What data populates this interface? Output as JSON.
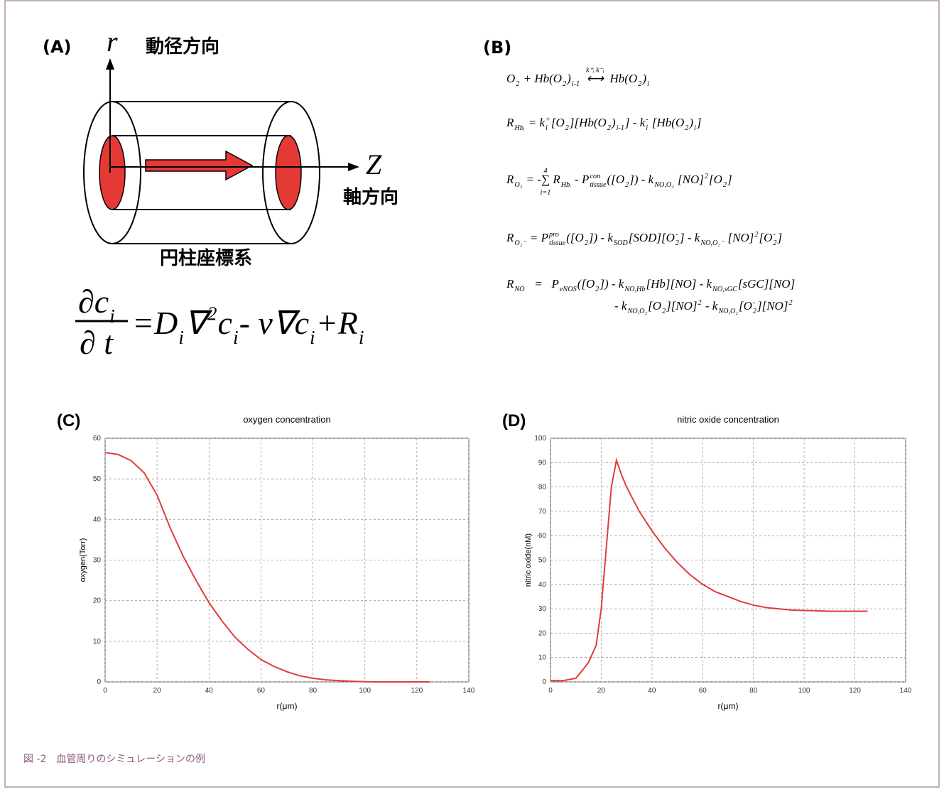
{
  "panel_a": {
    "label": "(A)",
    "r_axis": "r",
    "r_axis_name": "動径方向",
    "z_axis": "Z",
    "z_axis_name": "軸方向",
    "diagram_title": "円柱座標系",
    "equation": {
      "num": [
        {
          "t": "∂c",
          "sub": "i"
        }
      ],
      "den": [
        {
          "t": "∂ t"
        }
      ],
      "rhs": [
        {
          "t": "=D",
          "sub": "i"
        },
        {
          "t": "∇",
          "sup": "2"
        },
        {
          "t": "c",
          "sub": "i"
        },
        {
          "t": "- v∇c",
          "sub": "i"
        },
        {
          "t": "+R",
          "sub": "i"
        }
      ]
    }
  },
  "panel_b": {
    "label": "(B)",
    "equations": [
      [
        {
          "t": "O",
          "sub": "2"
        },
        {
          "t": " + Hb(O",
          "sub": "2"
        },
        {
          "t": ")",
          "sub": "i-1"
        },
        {
          "t": "  ⟷  ",
          "over": "k⁺ᵢ k⁻ᵢ"
        },
        {
          "t": "Hb(O",
          "sub": "2"
        },
        {
          "t": ")",
          "sub": "i"
        }
      ],
      [
        {
          "t": "R",
          "sub": "Hbᵢ"
        },
        {
          "t": " = k",
          "sup": "+",
          "sub": "i"
        },
        {
          "t": "[O",
          "sub": "2"
        },
        {
          "t": "][Hb(O",
          "sub": "2"
        },
        {
          "t": ")",
          "sub": "i-1"
        },
        {
          "t": "] - k",
          "sup": "-",
          "sub": "i"
        },
        {
          "t": " [Hb(O",
          "sub": "2"
        },
        {
          "t": ")",
          "sub": "i"
        },
        {
          "t": "]"
        }
      ],
      [
        {
          "t": "R",
          "sub": "O₂"
        },
        {
          "t": " = -"
        },
        {
          "t": "∑",
          "over": "4",
          "under": "i=1"
        },
        {
          "t": " R",
          "sub": "Hbᵢ"
        },
        {
          "t": " - P",
          "sup": "con",
          "sub": "tissue"
        },
        {
          "t": "([O",
          "sub": "2"
        },
        {
          "t": "]) - k",
          "sub": "NO,O₂"
        },
        {
          "t": " [NO]",
          "sup": "2"
        },
        {
          "t": "[O",
          "sub": "2"
        },
        {
          "t": "]"
        }
      ],
      [
        {
          "t": "R",
          "sub": "O₂⁻"
        },
        {
          "t": " = P",
          "sup": "pro",
          "sub": "tissue"
        },
        {
          "t": "([O",
          "sub": "2"
        },
        {
          "t": "]) - k",
          "sub": "SOD"
        },
        {
          "t": "[SOD][O",
          "sup": "-",
          "sub": "2"
        },
        {
          "t": "] - k",
          "sub": "NO,O₂⁻"
        },
        {
          "t": " [NO]",
          "sup": "2"
        },
        {
          "t": "[O",
          "sup": "-",
          "sub": "2"
        },
        {
          "t": "]"
        }
      ],
      [
        {
          "t": "R",
          "sub": "NO"
        },
        {
          "t": "   =   P",
          "sub": "eNOS"
        },
        {
          "t": "([O",
          "sub": "2"
        },
        {
          "t": "]) - k",
          "sub": "NO,Hb"
        },
        {
          "t": "[Hb][NO] - k",
          "sub": "NO,sGC"
        },
        {
          "t": "[sGC][NO]"
        }
      ],
      [
        {
          "t": "- k",
          "sub": "NO,O₂"
        },
        {
          "t": "[O",
          "sub": "2"
        },
        {
          "t": "][NO]",
          "sup": "2"
        },
        {
          "t": " - k",
          "sub": "NO,O₂"
        },
        {
          "t": "[O",
          "sup": "-",
          "sub": "2"
        },
        {
          "t": "][NO]",
          "sup": "2"
        }
      ]
    ]
  },
  "chart_data": [
    {
      "type": "line",
      "panel_label": "(C)",
      "title": "oxygen concentration",
      "x_label": "r(μm)",
      "y_label": "oxygen(Torr)",
      "color": "#e03c3c",
      "grid": true,
      "x": [
        0,
        5,
        10,
        15,
        20,
        25,
        30,
        35,
        40,
        45,
        50,
        55,
        60,
        65,
        70,
        75,
        80,
        85,
        90,
        95,
        100,
        105,
        110,
        115,
        120,
        125
      ],
      "values": [
        56.5,
        56,
        54.5,
        51.5,
        46,
        38,
        31,
        25,
        19.5,
        15,
        11,
        8,
        5.5,
        3.8,
        2.5,
        1.5,
        0.9,
        0.5,
        0.3,
        0.15,
        0.05,
        0,
        0,
        0,
        0,
        0
      ],
      "xlim": [
        0,
        140
      ],
      "xticks": [
        0,
        20,
        40,
        60,
        80,
        100,
        120,
        140
      ],
      "ylim": [
        0,
        60
      ],
      "yticks": [
        0,
        10,
        20,
        30,
        40,
        50,
        60
      ]
    },
    {
      "type": "line",
      "panel_label": "(D)",
      "title": "nitric oxide concentration",
      "x_label": "r(μm)",
      "y_label": "nitric oxide(nM)",
      "color": "#e03c3c",
      "grid": true,
      "x": [
        0,
        5,
        10,
        12,
        15,
        18,
        20,
        22,
        24,
        26,
        28,
        30,
        35,
        40,
        45,
        50,
        55,
        60,
        65,
        70,
        75,
        80,
        85,
        90,
        95,
        100,
        105,
        110,
        115,
        120,
        125
      ],
      "values": [
        0.5,
        0.5,
        1.5,
        4,
        8,
        15,
        30,
        55,
        80,
        91,
        85,
        80,
        70,
        62,
        55,
        49,
        44,
        40,
        37,
        35,
        33,
        31.5,
        30.5,
        30,
        29.5,
        29.3,
        29.2,
        29,
        29,
        29,
        29
      ],
      "xlim": [
        0,
        140
      ],
      "xticks": [
        0,
        20,
        40,
        60,
        80,
        100,
        120,
        140
      ],
      "ylim": [
        0,
        100
      ],
      "yticks": [
        0,
        10,
        20,
        30,
        40,
        50,
        60,
        70,
        80,
        90,
        100
      ]
    }
  ],
  "caption": "図 -2　血管周りのシミュレーションの例"
}
